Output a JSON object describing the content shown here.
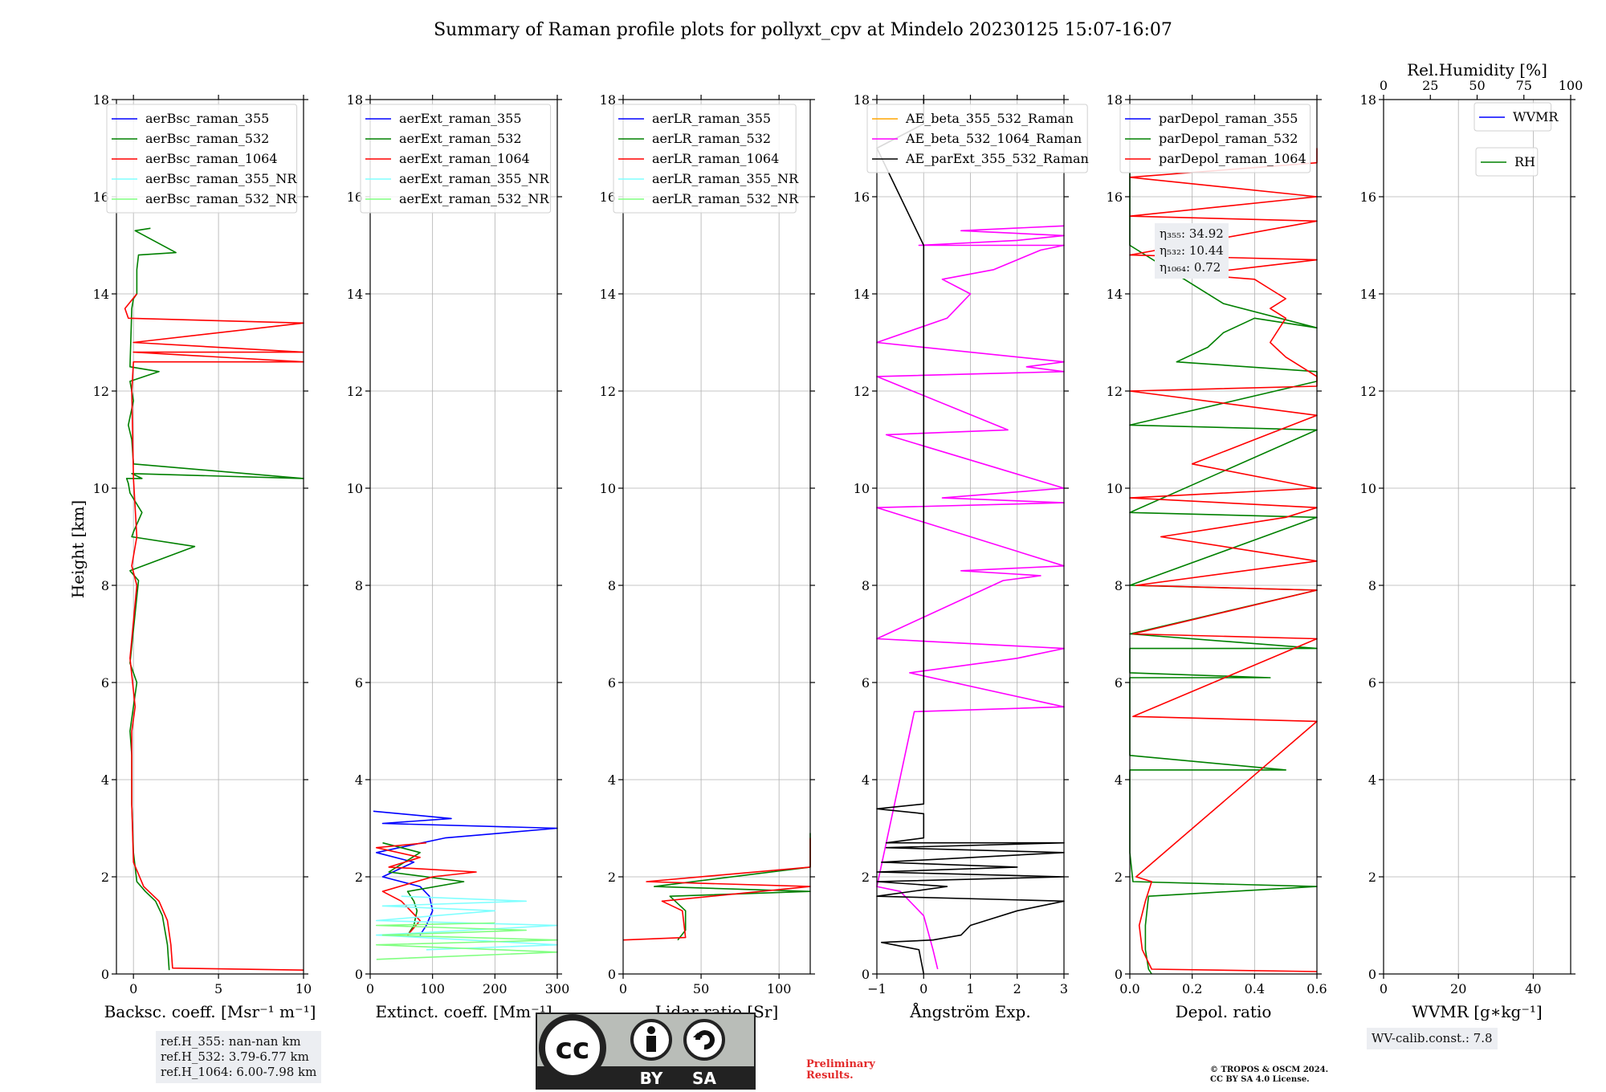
{
  "title": "Summary of Raman profile plots for pollyxt_cpv at Mindelo 20230125 15:07-16:07",
  "ylabel": "Height [km]",
  "boxes": {
    "refh": [
      "ref.H_355: nan-nan km",
      "ref.H_532: 3.79-6.77 km",
      "ref.H_1064: 6.00-7.98 km"
    ],
    "eta": [
      "η₃₅₅: 34.92",
      "η₅₃₂: 10.44",
      "η₁₀₆₄: 0.72"
    ],
    "wvcalib": "WV-calib.const.: 7.8"
  },
  "license": {
    "cc": "cc",
    "by": "BY",
    "sa": "SA",
    "prelim": [
      "Preliminary",
      "Results."
    ],
    "copyright": [
      "© TROPOS & OSCM 2024.",
      "CC BY SA 4.0 License."
    ]
  },
  "colors": {
    "blue": "#0000ff",
    "green": "#008000",
    "red": "#ff0000",
    "cyan": "#80ffff",
    "lightgreen": "#80ff80",
    "orange": "#ffa500",
    "magenta": "#ff00ff",
    "black": "#000000"
  },
  "chart_data": [
    {
      "type": "line",
      "id": "bsc",
      "xlabel": "Backsc. coeff. [Msr⁻¹ m⁻¹]",
      "xlim": [
        -1.0,
        10
      ],
      "xticks": [
        "0",
        "5",
        "10"
      ],
      "xtick_values": [
        0,
        5,
        10
      ],
      "ylim": [
        0,
        18
      ],
      "yticks": [
        "0",
        "2",
        "4",
        "6",
        "8",
        "10",
        "12",
        "14",
        "16",
        "18"
      ],
      "legend": [
        "aerBsc_raman_355",
        "aerBsc_raman_532",
        "aerBsc_raman_1064",
        "aerBsc_raman_355_NR",
        "aerBsc_raman_532_NR"
      ],
      "legend_colors": [
        "blue",
        "green",
        "red",
        "cyan",
        "lightgreen"
      ],
      "series": [
        {
          "name": "aerBsc_raman_532",
          "color": "green",
          "x": [
            2.1,
            2.0,
            1.7,
            1.3,
            0.7,
            0.2,
            0.0,
            -0.1,
            -0.1,
            -0.2,
            0.2,
            -0.2,
            0.3,
            -0.2,
            3.6,
            -0.1,
            0.0,
            0.5,
            -0.2,
            -0.3,
            -0.4,
            0.5,
            -0.1,
            10.0,
            0.0,
            -0.1,
            -0.3,
            0.0,
            -0.2,
            1.5,
            -0.2,
            -0.1,
            0.0,
            0.2,
            0.2,
            0.3,
            2.5,
            0.1,
            1.0
          ],
          "y": [
            0.08,
            0.6,
            1.2,
            1.5,
            1.7,
            1.9,
            2.5,
            3.5,
            4.5,
            5.0,
            6.0,
            6.4,
            8.1,
            8.3,
            8.8,
            9.0,
            9.1,
            9.5,
            9.9,
            10.1,
            10.2,
            10.2,
            10.3,
            10.2,
            10.5,
            11.0,
            11.3,
            11.8,
            12.2,
            12.4,
            12.5,
            13.7,
            13.9,
            14.0,
            14.5,
            14.8,
            14.85,
            15.3,
            15.35
          ]
        },
        {
          "name": "aerBsc_raman_1064",
          "color": "red",
          "x": [
            10.0,
            2.3,
            2.2,
            2.0,
            1.5,
            0.6,
            0.0,
            -0.1,
            -0.1,
            0.1,
            -0.2,
            0.2,
            -0.1,
            0.2,
            0.0,
            -0.1,
            0.0,
            10.0,
            0.0,
            10.0,
            0.0,
            10.0,
            -0.3,
            -0.5,
            0.2
          ],
          "y": [
            0.08,
            0.12,
            0.6,
            1.1,
            1.5,
            1.8,
            2.3,
            3.5,
            5.0,
            5.5,
            6.5,
            8.0,
            8.4,
            9.0,
            10.2,
            12.0,
            12.6,
            12.6,
            12.8,
            12.8,
            13.0,
            13.4,
            13.5,
            13.7,
            14.0
          ]
        }
      ]
    },
    {
      "type": "line",
      "id": "ext",
      "xlabel": "Extinct. coeff. [Mm⁻¹]",
      "xlim": [
        0,
        300
      ],
      "xticks": [
        "0",
        "100",
        "200",
        "300"
      ],
      "xtick_values": [
        0,
        100,
        200,
        300
      ],
      "ylim": [
        0,
        18
      ],
      "yticks": [
        "0",
        "2",
        "4",
        "6",
        "8",
        "10",
        "12",
        "14",
        "16",
        "18"
      ],
      "legend": [
        "aerExt_raman_355",
        "aerExt_raman_532",
        "aerExt_raman_1064",
        "aerExt_raman_355_NR",
        "aerExt_raman_532_NR"
      ],
      "legend_colors": [
        "blue",
        "green",
        "red",
        "cyan",
        "lightgreen"
      ],
      "series": [
        {
          "name": "aerExt_raman_355",
          "color": "blue",
          "x": [
            80,
            90,
            100,
            95,
            80,
            20,
            70,
            10,
            120,
            300,
            20,
            130,
            5
          ],
          "y": [
            0.8,
            1.0,
            1.3,
            1.6,
            1.8,
            2.0,
            2.3,
            2.5,
            2.8,
            3.0,
            3.1,
            3.2,
            3.35
          ]
        },
        {
          "name": "aerExt_raman_532",
          "color": "green",
          "x": [
            60,
            70,
            75,
            70,
            60,
            150,
            30,
            80,
            20
          ],
          "y": [
            0.8,
            1.0,
            1.3,
            1.5,
            1.7,
            1.9,
            2.1,
            2.5,
            2.7
          ]
        },
        {
          "name": "aerExt_raman_1064",
          "color": "red",
          "x": [
            60,
            80,
            50,
            20,
            100,
            170,
            30,
            80,
            10,
            90
          ],
          "y": [
            0.8,
            1.1,
            1.5,
            1.7,
            2.0,
            2.1,
            2.2,
            2.4,
            2.6,
            2.7
          ]
        },
        {
          "name": "aerExt_raman_355_NR",
          "color": "cyan",
          "x": [
            90,
            300,
            10,
            300,
            10,
            200,
            20,
            250,
            50
          ],
          "y": [
            0.5,
            0.6,
            0.8,
            1.0,
            1.1,
            1.3,
            1.4,
            1.5,
            1.6
          ]
        },
        {
          "name": "aerExt_raman_532_NR",
          "color": "lightgreen",
          "x": [
            10,
            300,
            10,
            300,
            20,
            250,
            10,
            200
          ],
          "y": [
            0.3,
            0.45,
            0.6,
            0.7,
            0.8,
            0.9,
            1.0,
            1.05
          ]
        }
      ]
    },
    {
      "type": "line",
      "id": "lr",
      "xlabel": "Lidar ratio [Sr]",
      "xlim": [
        0,
        120
      ],
      "xticks": [
        "0",
        "50",
        "100"
      ],
      "xtick_values": [
        0,
        50,
        100
      ],
      "ylim": [
        0,
        18
      ],
      "yticks": [
        "0",
        "2",
        "4",
        "6",
        "8",
        "10",
        "12",
        "14",
        "16",
        "18"
      ],
      "legend": [
        "aerLR_raman_355",
        "aerLR_raman_532",
        "aerLR_raman_1064",
        "aerLR_raman_355_NR",
        "aerLR_raman_532_NR"
      ],
      "legend_colors": [
        "blue",
        "green",
        "red",
        "cyan",
        "lightgreen"
      ],
      "series": [
        {
          "name": "aerLR_raman_532",
          "color": "green",
          "x": [
            35,
            40,
            40,
            30,
            120,
            20,
            120,
            120,
            120,
            120,
            120
          ],
          "y": [
            0.7,
            0.9,
            1.3,
            1.6,
            1.7,
            1.8,
            2.2,
            2.4,
            2.5,
            2.6,
            2.9
          ]
        },
        {
          "name": "aerLR_raman_1064",
          "color": "red",
          "x": [
            0,
            40,
            38,
            25,
            120,
            15,
            120,
            120,
            120,
            120,
            120
          ],
          "y": [
            0.7,
            0.75,
            1.3,
            1.5,
            1.8,
            1.9,
            2.2,
            2.4,
            2.5,
            2.7,
            2.8
          ]
        }
      ]
    },
    {
      "type": "line",
      "id": "ae",
      "xlabel": "Ångström Exp.",
      "xlim": [
        -1,
        3
      ],
      "xticks": [
        "−1",
        "0",
        "1",
        "2",
        "3"
      ],
      "xtick_values": [
        -1,
        0,
        1,
        2,
        3
      ],
      "ylim": [
        0,
        18
      ],
      "yticks": [
        "0",
        "2",
        "4",
        "6",
        "8",
        "10",
        "12",
        "14",
        "16",
        "18"
      ],
      "legend": [
        "AE_beta_355_532_Raman",
        "AE_beta_532_1064_Raman",
        "AE_parExt_355_532_Raman"
      ],
      "legend_colors": [
        "orange",
        "magenta",
        "black"
      ],
      "series": [
        {
          "name": "AE_beta_532_1064_Raman",
          "color": "magenta",
          "x": [
            0.3,
            0.2,
            0.0,
            -0.5,
            -1.0,
            -0.2,
            3.0,
            -0.3,
            2.0,
            3.0,
            -1.0,
            1.7,
            2.5,
            0.8,
            3.0,
            -1.0,
            3.0,
            0.4,
            3.0,
            -0.8,
            1.8,
            -1.0,
            3.0,
            2.2,
            3.0,
            -1.0,
            0.5,
            1.0,
            0.4,
            1.5,
            2.5,
            3.0,
            -0.1,
            2.0,
            3.0,
            0.8,
            3.0
          ],
          "y": [
            0.1,
            0.5,
            1.2,
            1.7,
            1.8,
            5.4,
            5.5,
            6.2,
            6.5,
            6.7,
            6.9,
            8.1,
            8.2,
            8.3,
            8.4,
            9.6,
            9.7,
            9.8,
            10.0,
            11.1,
            11.2,
            12.3,
            12.4,
            12.5,
            12.6,
            13.0,
            13.5,
            14.0,
            14.3,
            14.5,
            14.9,
            15.0,
            15.0,
            15.1,
            15.2,
            15.3,
            15.4
          ]
        },
        {
          "name": "AE_parExt_355_532_Raman",
          "color": "black",
          "x": [
            0.0,
            -0.1,
            -0.9,
            0.2,
            0.8,
            1.0,
            2.0,
            3.0,
            -1.0,
            0.5,
            -1.0,
            3.0,
            -1.0,
            2.0,
            -0.9,
            3.0,
            -0.8,
            3.0,
            -0.8,
            0.0,
            0.0,
            -1.0,
            0.0,
            0.0,
            -1.0,
            0.0,
            0.0
          ],
          "y": [
            0.0,
            0.5,
            0.65,
            0.7,
            0.8,
            1.0,
            1.3,
            1.5,
            1.6,
            1.8,
            1.9,
            2.0,
            2.1,
            2.2,
            2.3,
            2.5,
            2.6,
            2.7,
            2.7,
            2.8,
            3.3,
            3.4,
            3.5,
            15.0,
            17.0,
            17.5,
            18.0
          ]
        }
      ]
    },
    {
      "type": "line",
      "id": "depol",
      "xlabel": "Depol. ratio",
      "xlim": [
        0,
        0.6
      ],
      "xticks": [
        "0.0",
        "0.2",
        "0.4",
        "0.6"
      ],
      "xtick_values": [
        0,
        0.2,
        0.4,
        0.6
      ],
      "ylim": [
        0,
        18
      ],
      "yticks": [
        "0",
        "2",
        "4",
        "6",
        "8",
        "10",
        "12",
        "14",
        "16",
        "18"
      ],
      "legend": [
        "parDepol_raman_355",
        "parDepol_raman_532",
        "parDepol_raman_1064"
      ],
      "legend_colors": [
        "blue",
        "green",
        "red"
      ],
      "series": [
        {
          "name": "parDepol_raman_532",
          "color": "green",
          "x": [
            0.07,
            0.06,
            0.05,
            0.05,
            0.06,
            0.6,
            0.01,
            0.0,
            0.0,
            0.0,
            0.5,
            0.0,
            0.0,
            0.45,
            0.0,
            0.0,
            0.6,
            0.0,
            0.6,
            0.0,
            0.6,
            0.0,
            0.6,
            0.0,
            0.6,
            0.6,
            0.6,
            0.15,
            0.25,
            0.3,
            0.4,
            0.6,
            0.3,
            0.2,
            0.1,
            0.0,
            0.0
          ],
          "y": [
            0.0,
            0.1,
            0.5,
            1.0,
            1.6,
            1.8,
            1.9,
            2.5,
            3.5,
            4.2,
            4.2,
            4.5,
            6.1,
            6.1,
            6.2,
            6.7,
            6.7,
            7.0,
            7.9,
            8.0,
            9.4,
            9.5,
            11.2,
            11.3,
            12.2,
            12.3,
            12.4,
            12.6,
            12.9,
            13.2,
            13.5,
            13.3,
            13.8,
            14.2,
            14.6,
            15.0,
            16.5
          ]
        },
        {
          "name": "parDepol_raman_1064",
          "color": "red",
          "x": [
            0.6,
            0.07,
            0.04,
            0.03,
            0.05,
            0.07,
            0.02,
            0.6,
            0.01,
            0.6,
            0.01,
            0.6,
            0.02,
            0.6,
            0.1,
            0.3,
            0.5,
            0.6,
            0.0,
            0.6,
            0.2,
            0.4,
            0.6,
            0.0,
            0.6,
            0.6,
            0.55,
            0.5,
            0.45,
            0.5,
            0.45,
            0.5,
            0.45,
            0.4,
            0.2,
            0.6,
            0.0,
            0.6,
            0.0,
            0.6,
            0.0,
            0.6,
            0.6
          ],
          "y": [
            0.05,
            0.1,
            0.5,
            1.0,
            1.5,
            1.9,
            2.0,
            5.2,
            5.3,
            6.9,
            7.0,
            7.9,
            8.0,
            8.5,
            9.0,
            9.2,
            9.4,
            9.6,
            9.8,
            10.0,
            10.5,
            11.0,
            11.5,
            12.0,
            12.1,
            12.3,
            12.5,
            12.7,
            13.0,
            13.5,
            13.7,
            13.9,
            14.1,
            14.3,
            14.4,
            14.7,
            14.8,
            15.5,
            15.6,
            16.0,
            16.4,
            16.7,
            17.0
          ]
        }
      ]
    },
    {
      "type": "line",
      "id": "wv",
      "xlabel": "WVMR [g∗kg⁻¹]",
      "xlim": [
        0,
        50
      ],
      "xticks": [
        "0",
        "20",
        "40"
      ],
      "xtick_values": [
        0,
        20,
        40
      ],
      "ylim": [
        0,
        18
      ],
      "yticks": [
        "0",
        "2",
        "4",
        "6",
        "8",
        "10",
        "12",
        "14",
        "16",
        "18"
      ],
      "x2label": "Rel.Humidity [%]",
      "x2lim": [
        0,
        100
      ],
      "x2ticks": [
        "0",
        "25",
        "50",
        "75",
        "100"
      ],
      "x2tick_values": [
        0,
        25,
        50,
        75,
        100
      ],
      "legend": [
        "WVMR"
      ],
      "legend_colors": [
        "blue"
      ],
      "legend2": [
        "RH"
      ],
      "legend2_colors": [
        "green"
      ],
      "series": []
    }
  ]
}
